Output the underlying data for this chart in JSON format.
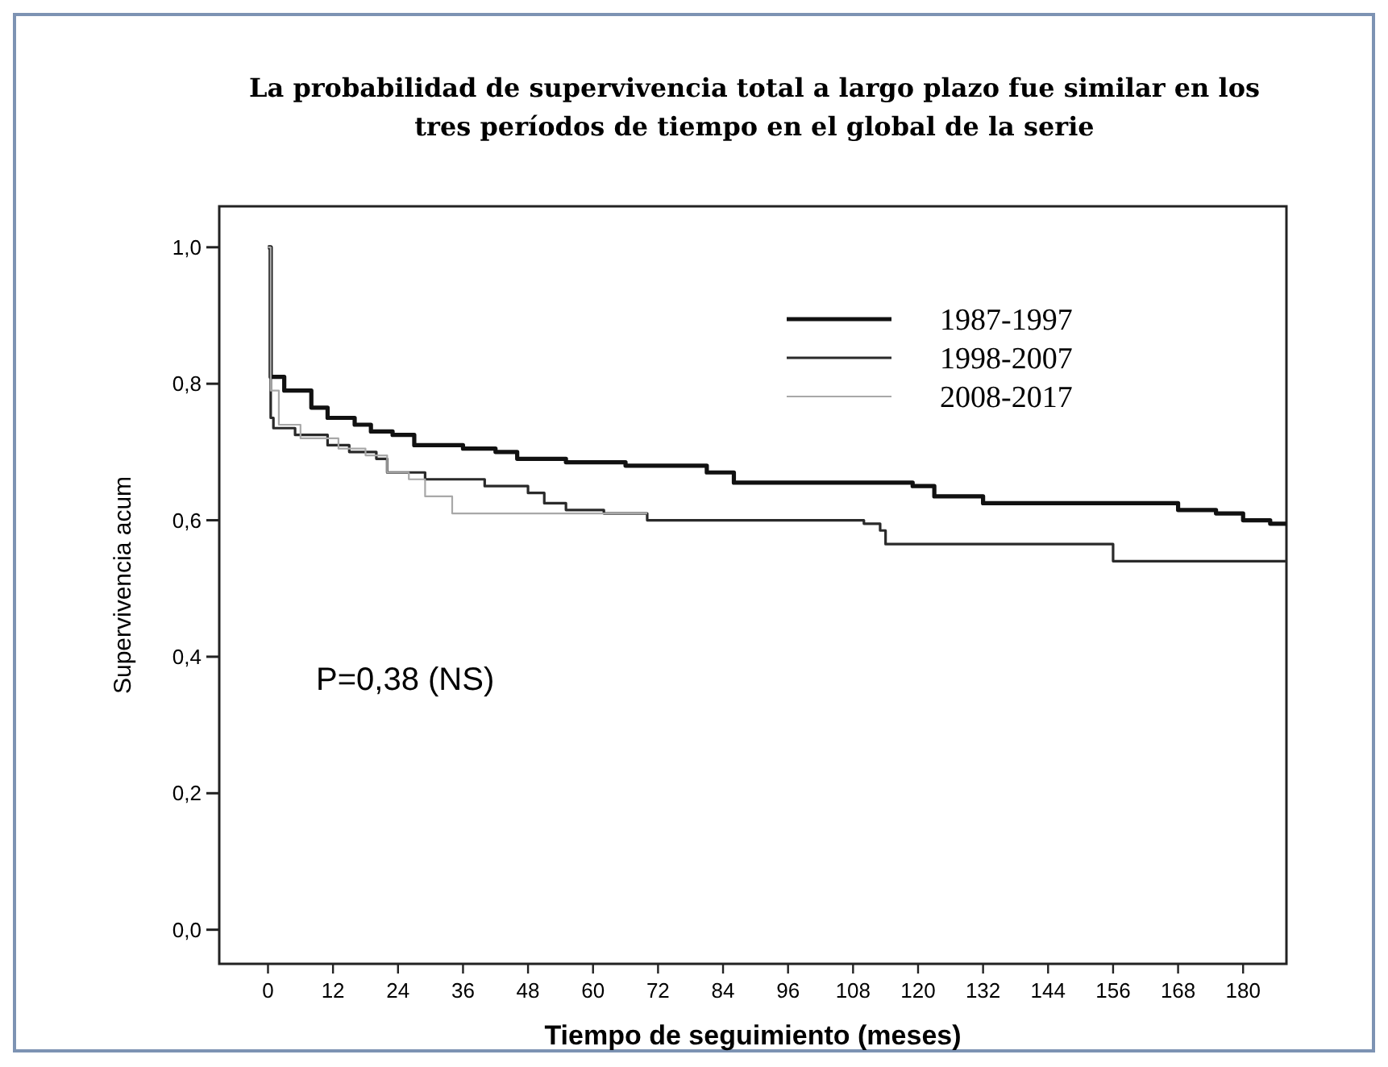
{
  "chart_data": {
    "type": "step",
    "title": "La probabilidad de supervivencia total a largo plazo fue similar en los tres períodos de tiempo en el global de la serie",
    "xlabel": "Tiempo de seguimiento (meses)",
    "ylabel": "Supervivencia acum",
    "annotations": [
      "P=0,38 (NS)"
    ],
    "xlim": [
      -9,
      188
    ],
    "xticks": [
      0,
      12,
      24,
      36,
      48,
      60,
      72,
      84,
      96,
      108,
      120,
      132,
      144,
      156,
      168,
      180
    ],
    "ylim": [
      -0.05,
      1.06
    ],
    "yticks": [
      {
        "value": 0,
        "label": "0,0"
      },
      {
        "value": 0.2,
        "label": "0,2"
      },
      {
        "value": 0.4,
        "label": "0,4"
      },
      {
        "value": 0.6,
        "label": "0,6"
      },
      {
        "value": 0.8,
        "label": "0,8"
      },
      {
        "value": 1,
        "label": "1,0"
      }
    ],
    "grid": false,
    "legend": "top right",
    "marker": "none",
    "line_style": "solid",
    "series": [
      {
        "name": "1987-1997",
        "color": "#111111",
        "x": [
          0,
          0.5,
          3,
          8,
          11,
          16,
          19,
          23,
          27,
          36,
          42,
          46,
          55,
          66,
          81,
          86,
          119,
          123,
          132,
          168,
          175,
          180,
          185,
          188
        ],
        "values": [
          1,
          0.81,
          0.79,
          0.765,
          0.75,
          0.74,
          0.73,
          0.725,
          0.71,
          0.705,
          0.7,
          0.69,
          0.685,
          0.68,
          0.67,
          0.655,
          0.65,
          0.635,
          0.625,
          0.615,
          0.61,
          0.6,
          0.595,
          0.595
        ]
      },
      {
        "name": "1998-2007",
        "color": "#2a2a2a",
        "x": [
          0,
          0.5,
          1,
          5,
          11,
          15,
          20,
          22,
          29,
          40,
          48,
          51,
          55,
          62,
          70,
          110,
          113,
          114,
          156,
          188
        ],
        "values": [
          1,
          0.75,
          0.735,
          0.725,
          0.71,
          0.7,
          0.69,
          0.67,
          0.66,
          0.65,
          0.64,
          0.625,
          0.615,
          0.61,
          0.6,
          0.595,
          0.585,
          0.565,
          0.54,
          0.54
        ]
      },
      {
        "name": "2008-2017",
        "color": "#a8a8a8",
        "x": [
          0,
          0.5,
          2,
          6,
          13,
          18,
          22,
          26,
          29,
          34,
          70
        ],
        "values": [
          1,
          0.79,
          0.74,
          0.72,
          0.705,
          0.695,
          0.67,
          0.66,
          0.635,
          0.61,
          0.61
        ]
      }
    ]
  }
}
